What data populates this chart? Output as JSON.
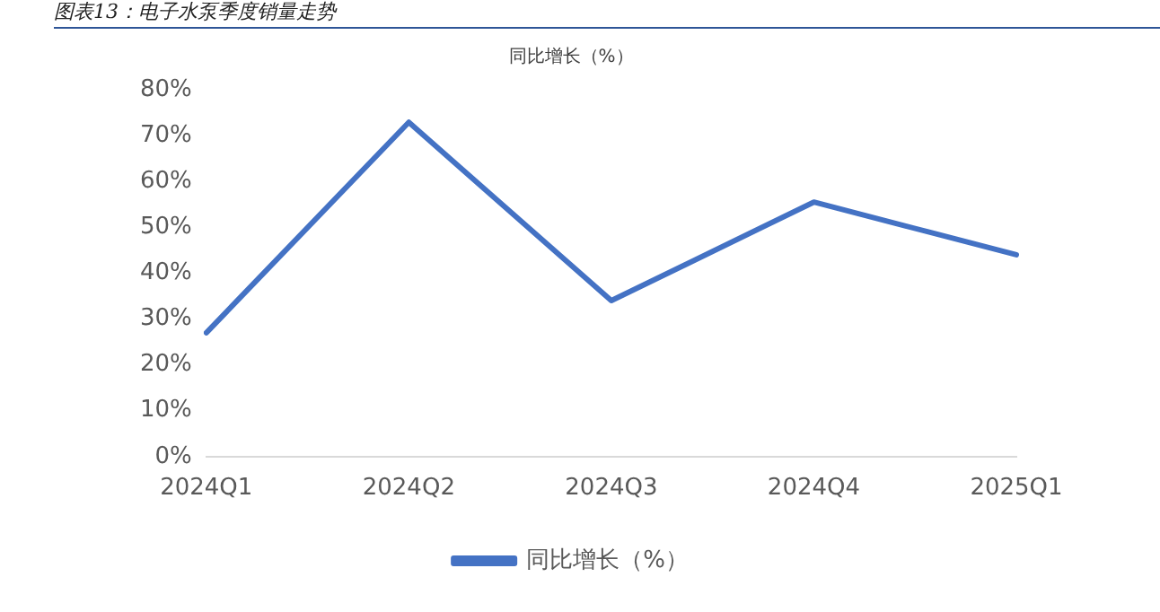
{
  "chart_data": {
    "type": "line",
    "title": "图表13：电子水泵季度销量走势",
    "subtitle": "同比增长（%）",
    "categories": [
      "2024Q1",
      "2024Q2",
      "2024Q3",
      "2024Q4",
      "2025Q1"
    ],
    "series": [
      {
        "name": "同比增长（%）",
        "color": "#4472c4",
        "values": [
          27,
          72.9,
          34,
          55.5,
          44
        ]
      }
    ],
    "ylim": [
      0,
      80
    ],
    "yticks": [
      {
        "value": 0,
        "label": "0%"
      },
      {
        "value": 10,
        "label": "10%"
      },
      {
        "value": 20,
        "label": "20%"
      },
      {
        "value": 30,
        "label": "30%"
      },
      {
        "value": 40,
        "label": "40%"
      },
      {
        "value": 50,
        "label": "50%"
      },
      {
        "value": 60,
        "label": "60%"
      },
      {
        "value": 70,
        "label": "70%"
      },
      {
        "value": 80,
        "label": "80%"
      }
    ],
    "grid": false,
    "legend": "bottom",
    "marker": "none",
    "line_style": "solid"
  }
}
